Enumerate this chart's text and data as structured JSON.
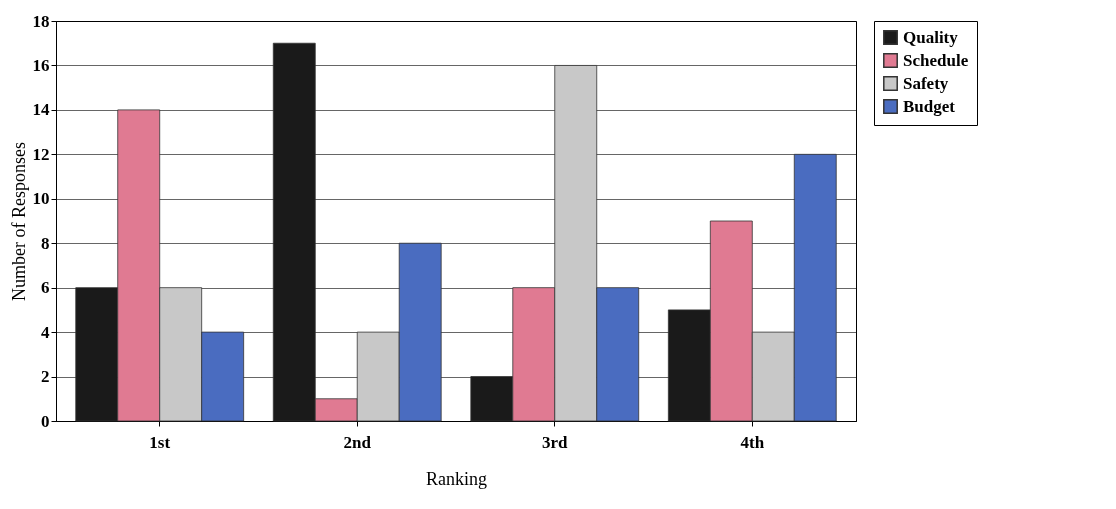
{
  "chart_data": {
    "type": "bar",
    "xlabel": "Ranking",
    "ylabel": "Number of Responses",
    "categories": [
      "1st",
      "2nd",
      "3rd",
      "4th"
    ],
    "series": [
      {
        "name": "Quality",
        "color": "#1a1a1a",
        "values": [
          6,
          17,
          2,
          5
        ]
      },
      {
        "name": "Schedule",
        "color": "#e07a92",
        "values": [
          14,
          1,
          6,
          9
        ]
      },
      {
        "name": "Safety",
        "color": "#c8c8c8",
        "values": [
          6,
          4,
          16,
          4
        ]
      },
      {
        "name": "Budget",
        "color": "#4a6cc0",
        "values": [
          4,
          8,
          6,
          12
        ]
      }
    ],
    "ylim": [
      0,
      18
    ],
    "yticks": [
      0,
      2,
      4,
      6,
      8,
      10,
      12,
      14,
      16,
      18
    ],
    "grid": "y",
    "legend": "right"
  }
}
